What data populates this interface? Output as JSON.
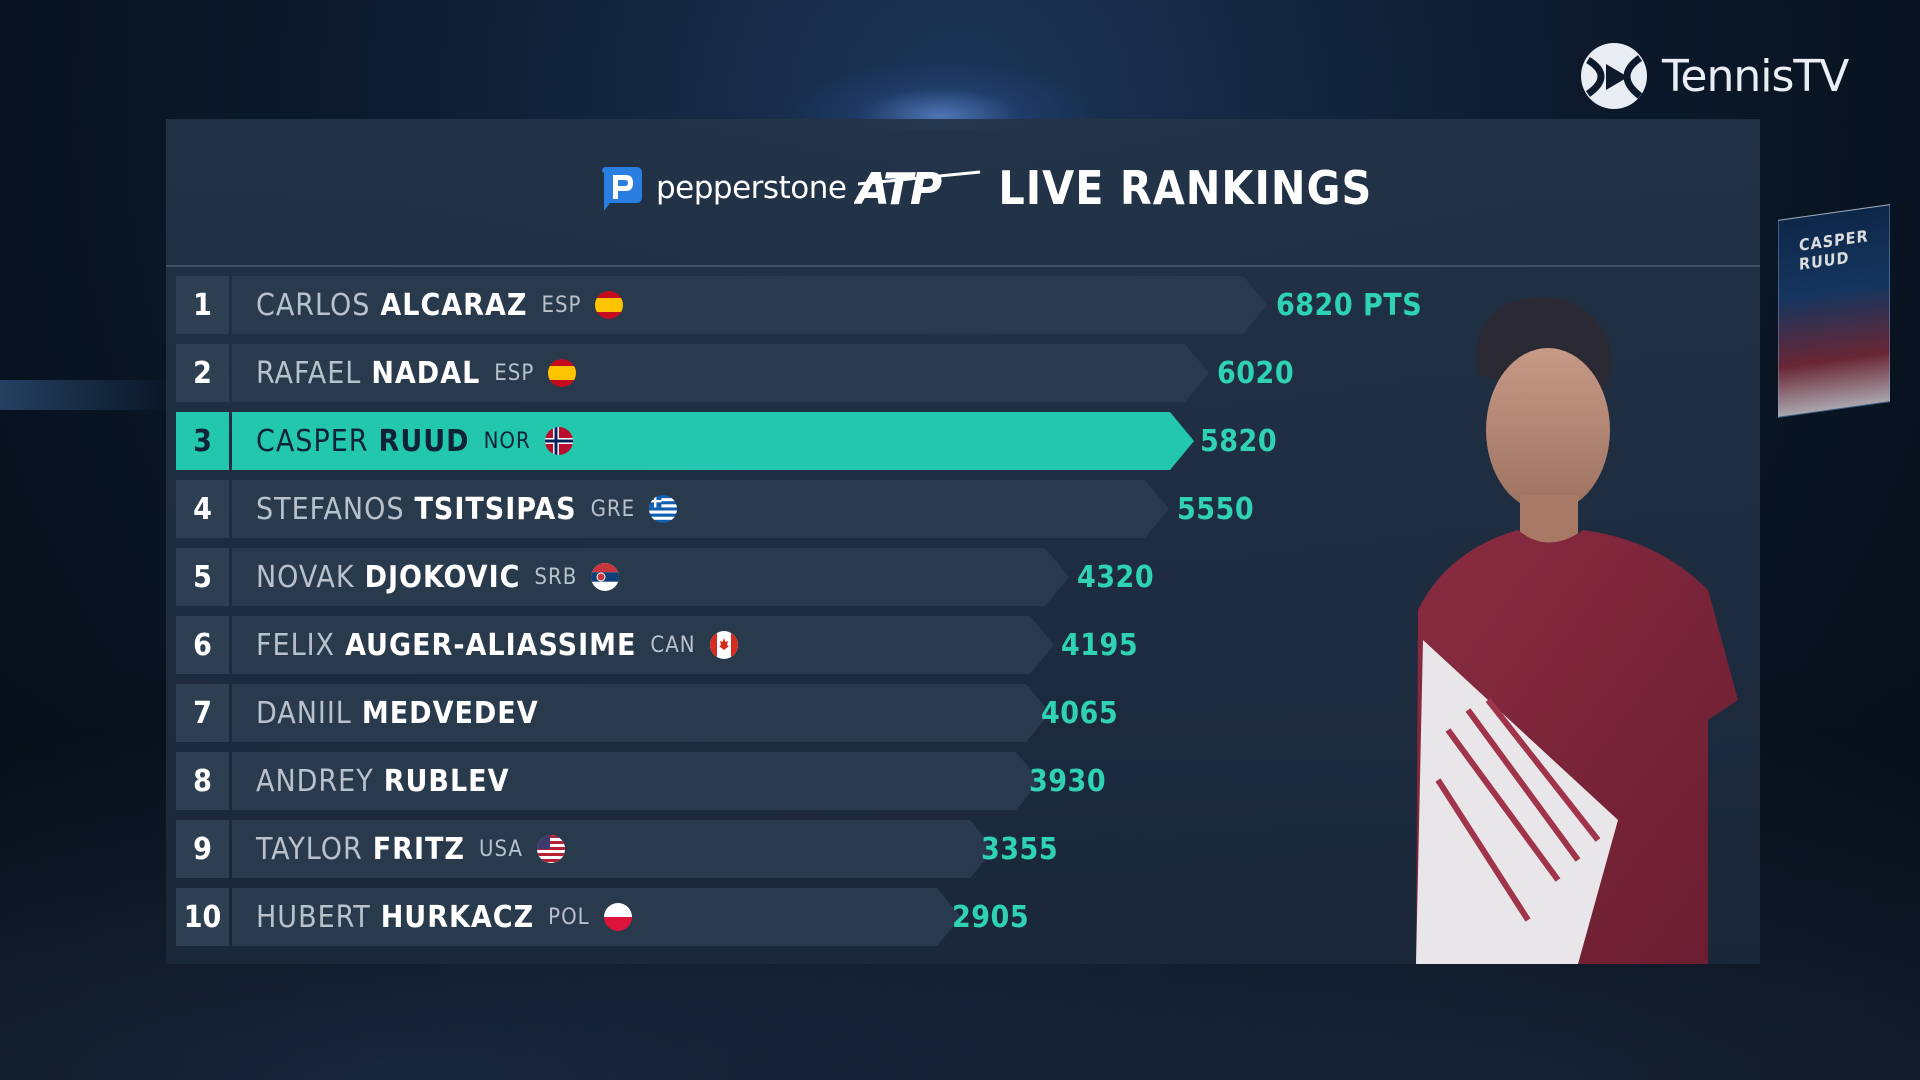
{
  "broadcaster": {
    "logo_text": "TennisTV"
  },
  "header": {
    "sponsor": "pepperstone",
    "title": "LIVE RANKINGS"
  },
  "background_screen": {
    "text": "CASPER RUUD"
  },
  "colors": {
    "accent": "#22c7ae",
    "points": "#2fd2b5",
    "bar": "#2a3a4d"
  },
  "rankings": [
    {
      "rank": "1",
      "first": "CARLOS",
      "last": "ALCARAZ",
      "country": "ESP",
      "flag": "spain-flag-icon",
      "points": "6820 PTS"
    },
    {
      "rank": "2",
      "first": "RAFAEL",
      "last": "NADAL",
      "country": "ESP",
      "flag": "spain-flag-icon",
      "points": "6020"
    },
    {
      "rank": "3",
      "first": "CASPER",
      "last": "RUUD",
      "country": "NOR",
      "flag": "norway-flag-icon",
      "points": "5820"
    },
    {
      "rank": "4",
      "first": "STEFANOS",
      "last": "TSITSIPAS",
      "country": "GRE",
      "flag": "greece-flag-icon",
      "points": "5550"
    },
    {
      "rank": "5",
      "first": "NOVAK",
      "last": "DJOKOVIC",
      "country": "SRB",
      "flag": "serbia-flag-icon",
      "points": "4320"
    },
    {
      "rank": "6",
      "first": "FELIX",
      "last": "AUGER-ALIASSIME",
      "country": "CAN",
      "flag": "canada-flag-icon",
      "points": "4195"
    },
    {
      "rank": "7",
      "first": "DANIIL",
      "last": "MEDVEDEV",
      "country": "",
      "flag": "",
      "points": "4065"
    },
    {
      "rank": "8",
      "first": "ANDREY",
      "last": "RUBLEV",
      "country": "",
      "flag": "",
      "points": "3930"
    },
    {
      "rank": "9",
      "first": "TAYLOR",
      "last": "FRITZ",
      "country": "USA",
      "flag": "usa-flag-icon",
      "points": "3355"
    },
    {
      "rank": "10",
      "first": "HUBERT",
      "last": "HURKACZ",
      "country": "POL",
      "flag": "poland-flag-icon",
      "points": "2905"
    }
  ],
  "highlighted_rank": "3"
}
